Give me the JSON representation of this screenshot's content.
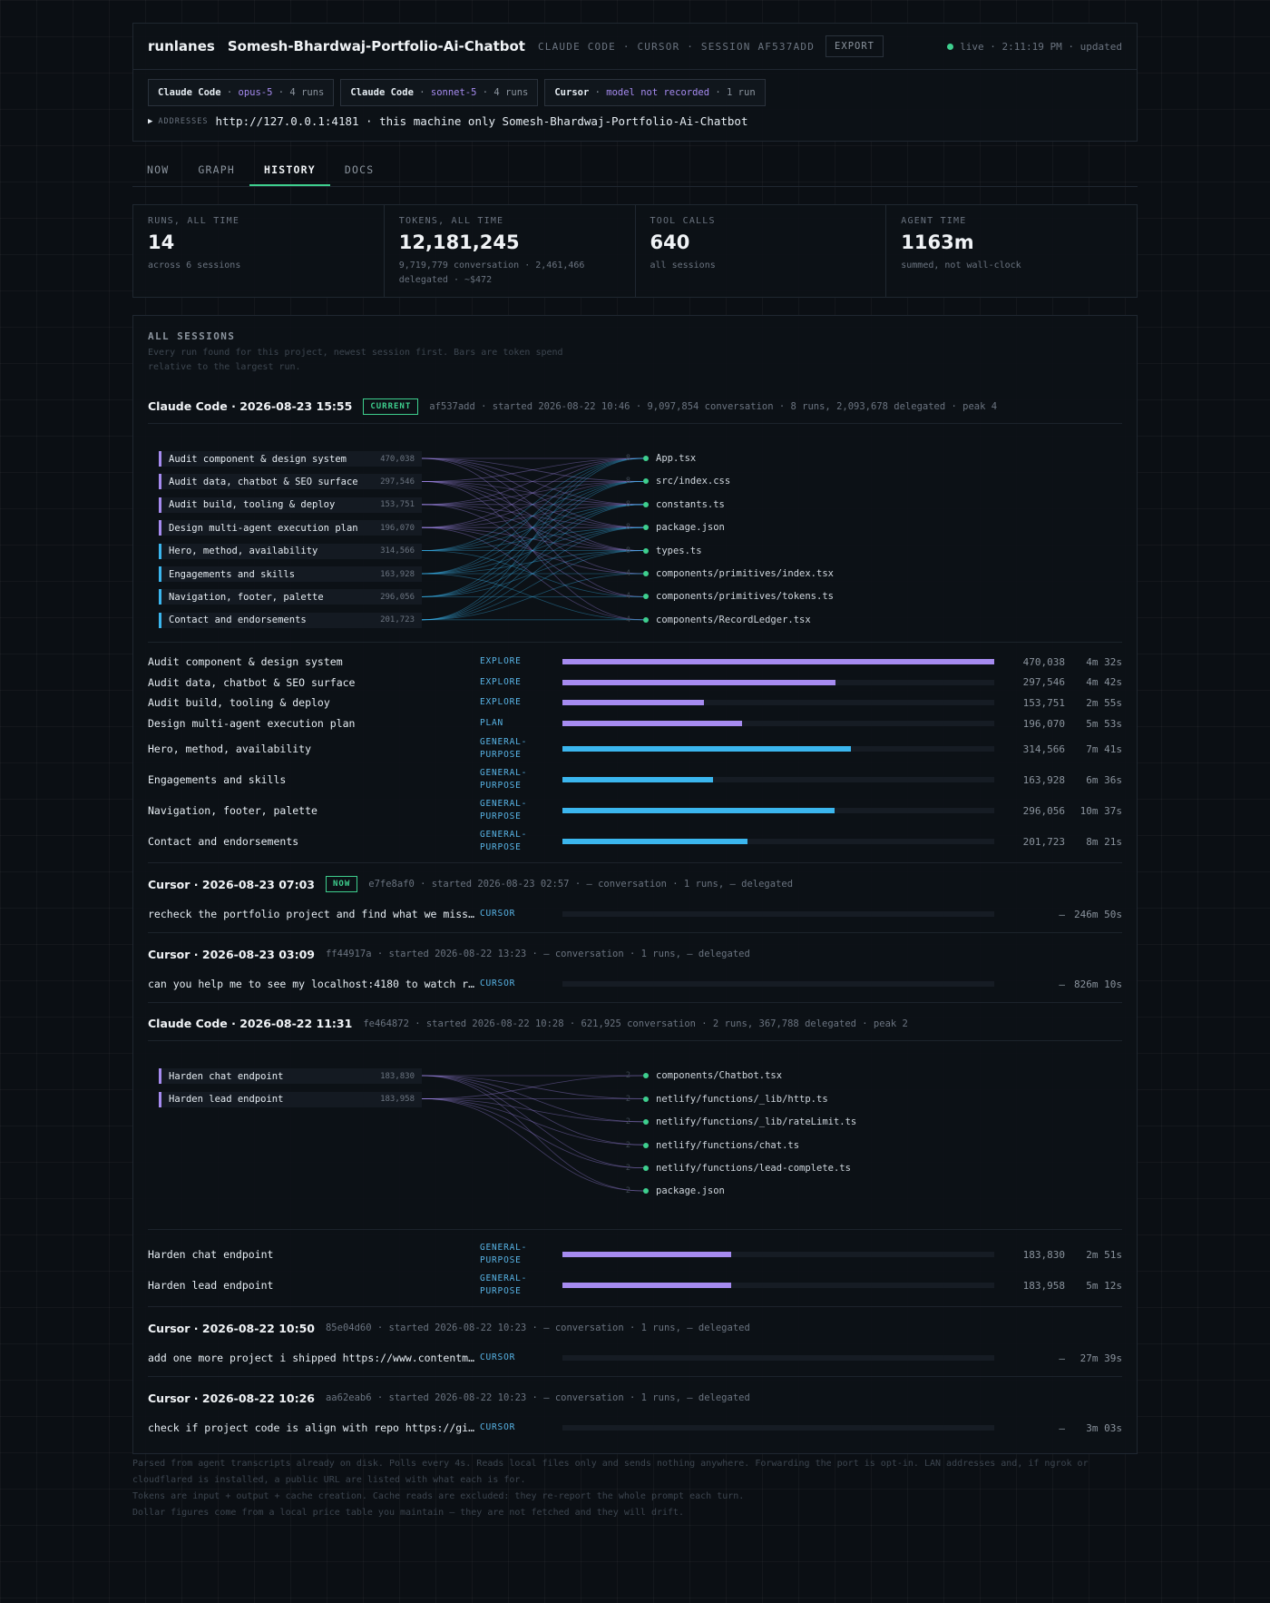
{
  "header": {
    "brand": "runlanes",
    "project": "Somesh-Bhardwaj-Portfolio-Ai-Chatbot",
    "meta": "CLAUDE CODE · CURSOR · SESSION AF537ADD",
    "export_label": "EXPORT",
    "status": "live · 2:11:19 PM · updated",
    "status_color": "#3ecf8e",
    "chips": [
      {
        "agent": "Claude Code",
        "model": "opus-5",
        "runs": "4 runs"
      },
      {
        "agent": "Claude Code",
        "model": "sonnet-5",
        "runs": "4 runs"
      },
      {
        "agent": "Cursor",
        "model": "model not recorded",
        "runs": "1 run"
      }
    ],
    "addresses_label": "ADDRESSES",
    "addresses_value": "http://127.0.0.1:4181 · this machine only Somesh-Bhardwaj-Portfolio-Ai-Chatbot"
  },
  "tabs": [
    "NOW",
    "GRAPH",
    "HISTORY",
    "DOCS"
  ],
  "active_tab": "HISTORY",
  "stats": [
    {
      "label": "RUNS, ALL TIME",
      "value": "14",
      "sub": "across 6 sessions"
    },
    {
      "label": "TOKENS, ALL TIME",
      "value": "12,181,245",
      "sub": "9,719,779 conversation · 2,461,466 delegated · ~$472"
    },
    {
      "label": "TOOL CALLS",
      "value": "640",
      "sub": "all sessions"
    },
    {
      "label": "AGENT TIME",
      "value": "1163m",
      "sub": "summed, not wall-clock"
    }
  ],
  "sessions_section": {
    "title": "ALL SESSIONS",
    "description": "Every run found for this project, newest session first. Bars are token spend relative to the largest run."
  },
  "colors": {
    "explore": "#a68bf0",
    "general": "#3bb6ee",
    "accent": "#3ecf8e"
  },
  "sessions": [
    {
      "title": "Claude Code · 2026-08-23 15:55",
      "badge": "CURRENT",
      "meta": "af537add · started 2026-08-22 10:46 · 9,097,854 conversation · 8 runs, 2,093,678 delegated · peak 4",
      "graph": {
        "tasks": [
          {
            "name": "Audit component & design system",
            "tokens": "470,038",
            "color": "#a68bf0"
          },
          {
            "name": "Audit data, chatbot & SEO surface",
            "tokens": "297,546",
            "color": "#a68bf0"
          },
          {
            "name": "Audit build, tooling & deploy",
            "tokens": "153,751",
            "color": "#a68bf0"
          },
          {
            "name": "Design multi-agent execution plan",
            "tokens": "196,070",
            "color": "#a68bf0"
          },
          {
            "name": "Hero, method, availability",
            "tokens": "314,566",
            "color": "#3bb6ee"
          },
          {
            "name": "Engagements and skills",
            "tokens": "163,928",
            "color": "#3bb6ee"
          },
          {
            "name": "Navigation, footer, palette",
            "tokens": "296,056",
            "color": "#3bb6ee"
          },
          {
            "name": "Contact and endorsements",
            "tokens": "201,723",
            "color": "#3bb6ee"
          }
        ],
        "files": [
          {
            "name": "App.tsx",
            "count": "8"
          },
          {
            "name": "src/index.css",
            "count": "8"
          },
          {
            "name": "constants.ts",
            "count": "8"
          },
          {
            "name": "package.json",
            "count": "8"
          },
          {
            "name": "types.ts",
            "count": "8"
          },
          {
            "name": "components/primitives/index.tsx",
            "count": "4"
          },
          {
            "name": "components/primitives/tokens.ts",
            "count": "4"
          },
          {
            "name": "components/RecordLedger.tsx",
            "count": "4"
          }
        ]
      },
      "runs": [
        {
          "name": "Audit component & design system",
          "kind": "EXPLORE",
          "fraction": 1.0,
          "color": "#a68bf0",
          "tokens": "470,038",
          "time": "4m 32s"
        },
        {
          "name": "Audit data, chatbot & SEO surface",
          "kind": "EXPLORE",
          "fraction": 0.633,
          "color": "#a68bf0",
          "tokens": "297,546",
          "time": "4m 42s"
        },
        {
          "name": "Audit build, tooling & deploy",
          "kind": "EXPLORE",
          "fraction": 0.327,
          "color": "#a68bf0",
          "tokens": "153,751",
          "time": "2m 55s"
        },
        {
          "name": "Design multi-agent execution plan",
          "kind": "PLAN",
          "fraction": 0.417,
          "color": "#a68bf0",
          "tokens": "196,070",
          "time": "5m 53s"
        },
        {
          "name": "Hero, method, availability",
          "kind": "GENERAL-PURPOSE",
          "fraction": 0.669,
          "color": "#3bb6ee",
          "tokens": "314,566",
          "time": "7m 41s"
        },
        {
          "name": "Engagements and skills",
          "kind": "GENERAL-PURPOSE",
          "fraction": 0.349,
          "color": "#3bb6ee",
          "tokens": "163,928",
          "time": "6m 36s"
        },
        {
          "name": "Navigation, footer, palette",
          "kind": "GENERAL-PURPOSE",
          "fraction": 0.63,
          "color": "#3bb6ee",
          "tokens": "296,056",
          "time": "10m 37s"
        },
        {
          "name": "Contact and endorsements",
          "kind": "GENERAL-PURPOSE",
          "fraction": 0.429,
          "color": "#3bb6ee",
          "tokens": "201,723",
          "time": "8m 21s"
        }
      ]
    },
    {
      "title": "Cursor · 2026-08-23 07:03",
      "badge": "NOW",
      "meta": "e7fe8af0 · started 2026-08-23 02:57 · — conversation · 1 runs, — delegated",
      "runs": [
        {
          "name": "recheck the portfolio project and find what we missed and what c…",
          "kind": "CURSOR",
          "fraction": 0,
          "color": "#3bb6ee",
          "tokens": "—",
          "time": "246m 50s"
        }
      ]
    },
    {
      "title": "Cursor · 2026-08-23 03:09",
      "badge": "",
      "meta": "ff44917a · started 2026-08-22 13:23 · — conversation · 1 runs, — delegated",
      "runs": [
        {
          "name": "can you help me to see my localhost:4180 to watch remote coding a…",
          "kind": "CURSOR",
          "fraction": 0,
          "color": "#3bb6ee",
          "tokens": "—",
          "time": "826m 10s"
        }
      ]
    },
    {
      "title": "Claude Code · 2026-08-22 11:31",
      "badge": "",
      "meta": "fe464872 · started 2026-08-22 10:28 · 621,925 conversation · 2 runs, 367,788 delegated · peak 2",
      "graph": {
        "tasks": [
          {
            "name": "Harden chat endpoint",
            "tokens": "183,830",
            "color": "#a68bf0"
          },
          {
            "name": "Harden lead endpoint",
            "tokens": "183,958",
            "color": "#a68bf0"
          }
        ],
        "files": [
          {
            "name": "components/Chatbot.tsx",
            "count": "2"
          },
          {
            "name": "netlify/functions/_lib/http.ts",
            "count": "2"
          },
          {
            "name": "netlify/functions/_lib/rateLimit.ts",
            "count": "2"
          },
          {
            "name": "netlify/functions/chat.ts",
            "count": "2"
          },
          {
            "name": "netlify/functions/lead-complete.ts",
            "count": "2"
          },
          {
            "name": "package.json",
            "count": "2"
          }
        ]
      },
      "runs": [
        {
          "name": "Harden chat endpoint",
          "kind": "GENERAL-PURPOSE",
          "fraction": 0.391,
          "color": "#a68bf0",
          "tokens": "183,830",
          "time": "2m 51s"
        },
        {
          "name": "Harden lead endpoint",
          "kind": "GENERAL-PURPOSE",
          "fraction": 0.391,
          "color": "#a68bf0",
          "tokens": "183,958",
          "time": "5m 12s"
        }
      ]
    },
    {
      "title": "Cursor · 2026-08-22 10:50",
      "badge": "",
      "meta": "85e04d60 · started 2026-08-22 10:23 · — conversation · 1 runs, — delegated",
      "runs": [
        {
          "name": "add one more project i shipped https://www.contentment.com/ and c…",
          "kind": "CURSOR",
          "fraction": 0,
          "color": "#3bb6ee",
          "tokens": "—",
          "time": "27m 39s"
        }
      ]
    },
    {
      "title": "Cursor · 2026-08-22 10:26",
      "badge": "",
      "meta": "aa62eab6 · started 2026-08-22 10:23 · — conversation · 1 runs, — delegated",
      "runs": [
        {
          "name": "check if project code is align with repo https://github.com/some…",
          "kind": "CURSOR",
          "fraction": 0,
          "color": "#3bb6ee",
          "tokens": "—",
          "time": "3m 03s"
        }
      ]
    }
  ],
  "footer": [
    "Parsed from agent transcripts already on disk. Polls every 4s. Reads local files only and sends nothing anywhere. Forwarding the port is opt-in. LAN addresses and, if ngrok or cloudflared is installed, a public URL are listed with what each is for.",
    "Tokens are input + output + cache creation. Cache reads are excluded: they re-report the whole prompt each turn.",
    "Dollar figures come from a local price table you maintain — they are not fetched and they will drift."
  ]
}
